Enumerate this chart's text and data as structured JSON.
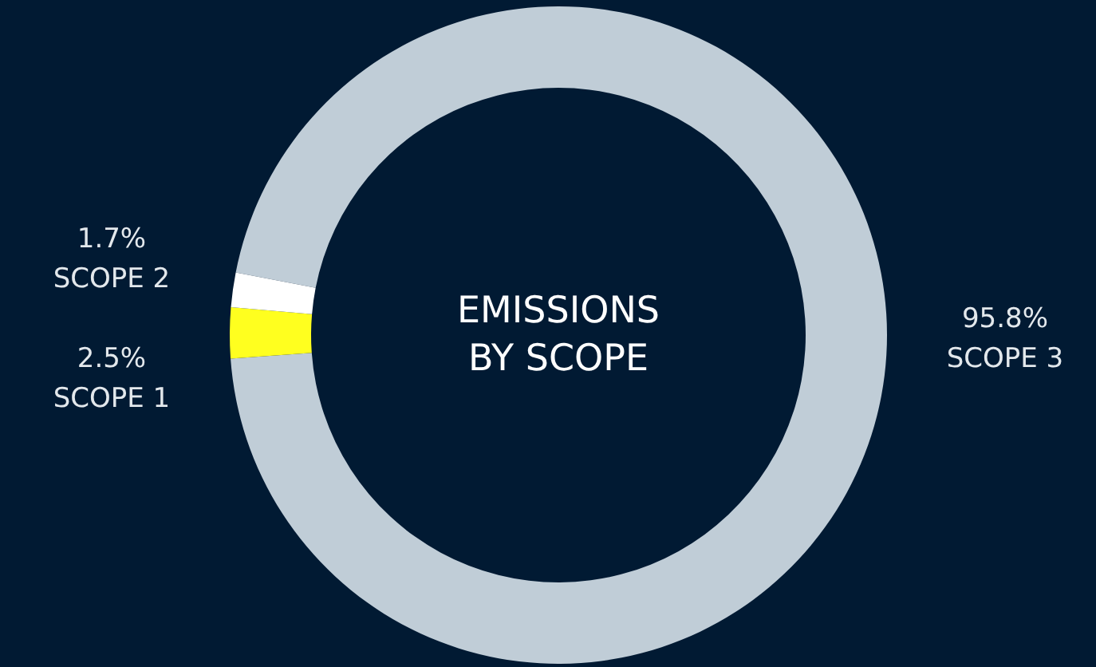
{
  "chart_data": {
    "type": "donut",
    "title": "EMISSIONS BY SCOPE",
    "categories": [
      "SCOPE 3",
      "SCOPE 1",
      "SCOPE 2"
    ],
    "values": [
      95.8,
      2.5,
      1.7
    ],
    "colors": [
      "#c0cdd7",
      "#ffff1f",
      "#ffffff"
    ],
    "value_labels": [
      "95.8%",
      "2.5%",
      "1.7%"
    ]
  }
}
